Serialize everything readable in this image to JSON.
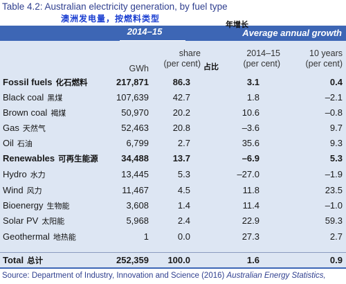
{
  "title": "Table 4.2: Australian electricity generation, by fuel type",
  "subtitle": "澳洲发电量，按燃料类型",
  "header": {
    "period": "2014–15",
    "growth": "Average annual growth",
    "growth_note": "年增长"
  },
  "columns": {
    "gwh": "GWh",
    "share_line1": "share",
    "share_line2": "(per cent)",
    "share_note": "占比",
    "y1_line1": "2014–15",
    "y1_line2": "(per cent)",
    "y2_line1": "10 years",
    "y2_line2": "(per cent)"
  },
  "rows": [
    {
      "name": "Fossil fuels",
      "cn": "化石燃料",
      "gwh": "217,871",
      "share": "86.3",
      "g1": "3.1",
      "g2": "0.4"
    },
    {
      "name": "Black coal",
      "cn": "黑煤",
      "gwh": "107,639",
      "share": "42.7",
      "g1": "1.8",
      "g2": "–2.1"
    },
    {
      "name": "Brown coal",
      "cn": "褐煤",
      "gwh": "50,970",
      "share": "20.2",
      "g1": "10.6",
      "g2": "–0.8"
    },
    {
      "name": "Gas",
      "cn": "天然气",
      "gwh": "52,463",
      "share": "20.8",
      "g1": "–3.6",
      "g2": "9.7"
    },
    {
      "name": "Oil",
      "cn": "石油",
      "gwh": "6,799",
      "share": "2.7",
      "g1": "35.6",
      "g2": "9.3"
    },
    {
      "name": "Renewables",
      "cn": "可再生能源",
      "gwh": "34,488",
      "share": "13.7",
      "g1": "–6.9",
      "g2": "5.3"
    },
    {
      "name": "Hydro",
      "cn": "水力",
      "gwh": "13,445",
      "share": "5.3",
      "g1": "–27.0",
      "g2": "–1.9"
    },
    {
      "name": "Wind",
      "cn": "风力",
      "gwh": "11,467",
      "share": "4.5",
      "g1": "11.8",
      "g2": "23.5"
    },
    {
      "name": "Bioenergy",
      "cn": "生物能",
      "gwh": "3,608",
      "share": "1.4",
      "g1": "11.4",
      "g2": "–1.0"
    },
    {
      "name": "Solar PV",
      "cn": "太阳能",
      "gwh": "5,968",
      "share": "2.4",
      "g1": "22.9",
      "g2": "59.3"
    },
    {
      "name": "Geothermal",
      "cn": "地热能",
      "gwh": "1",
      "share": "0.0",
      "g1": "27.3",
      "g2": "2.7"
    },
    {
      "name": "Total",
      "cn": "总计",
      "gwh": "252,359",
      "share": "100.0",
      "g1": "1.6",
      "g2": "0.9"
    }
  ],
  "source": {
    "prefix": "Source: Department of Industry, Innovation and Science (2016) ",
    "italic": "Australian Energy Statistics,"
  }
}
